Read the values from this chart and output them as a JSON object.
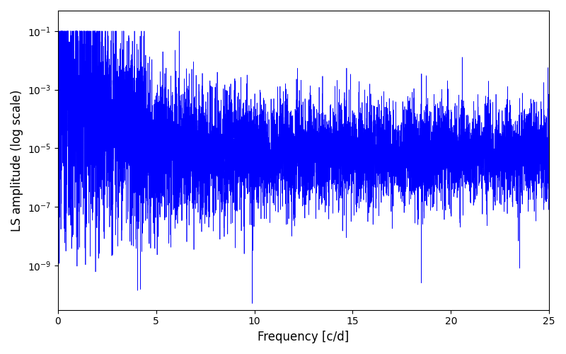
{
  "xlabel": "Frequency [c/d]",
  "ylabel": "LS amplitude (log scale)",
  "line_color": "#0000ff",
  "line_width": 0.5,
  "xlim": [
    0,
    25
  ],
  "ylim": [
    3e-11,
    0.5
  ],
  "yticks": [
    1e-09,
    1e-07,
    1e-05,
    0.001,
    0.1
  ],
  "xticks": [
    0,
    5,
    10,
    15,
    20,
    25
  ],
  "figsize": [
    8.0,
    5.0
  ],
  "dpi": 100,
  "seed": 77,
  "n_points": 8000,
  "freq_max": 25.0,
  "background_color": "#ffffff",
  "dip1_freq": 9.9,
  "dip1_val": -10.3,
  "dip2_freq": 18.5,
  "dip2_val": -9.6,
  "dip3_freq": 23.5,
  "dip3_val": -9.1
}
